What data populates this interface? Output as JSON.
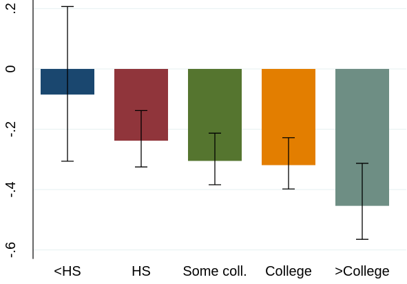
{
  "chart_data": {
    "type": "bar",
    "categories": [
      "<HS",
      "HS",
      "Some coll.",
      "College",
      ">College"
    ],
    "values": [
      -0.085,
      -0.238,
      -0.305,
      -0.319,
      -0.454
    ],
    "error_low": [
      -0.306,
      -0.325,
      -0.384,
      -0.398,
      -0.565
    ],
    "error_high": [
      0.207,
      -0.138,
      -0.213,
      -0.228,
      -0.313
    ],
    "colors": [
      "#1a476f",
      "#90353b",
      "#55752f",
      "#e37e00",
      "#6e8e84"
    ],
    "yticks": [
      0.2,
      0,
      -0.2,
      -0.4,
      -0.6
    ],
    "ytick_labels": [
      ".2",
      "0",
      "-.2",
      "-.4",
      "-.6"
    ],
    "ylim": [
      -0.63,
      0.2
    ],
    "grid": true,
    "title": "",
    "xlabel": "",
    "ylabel": ""
  }
}
